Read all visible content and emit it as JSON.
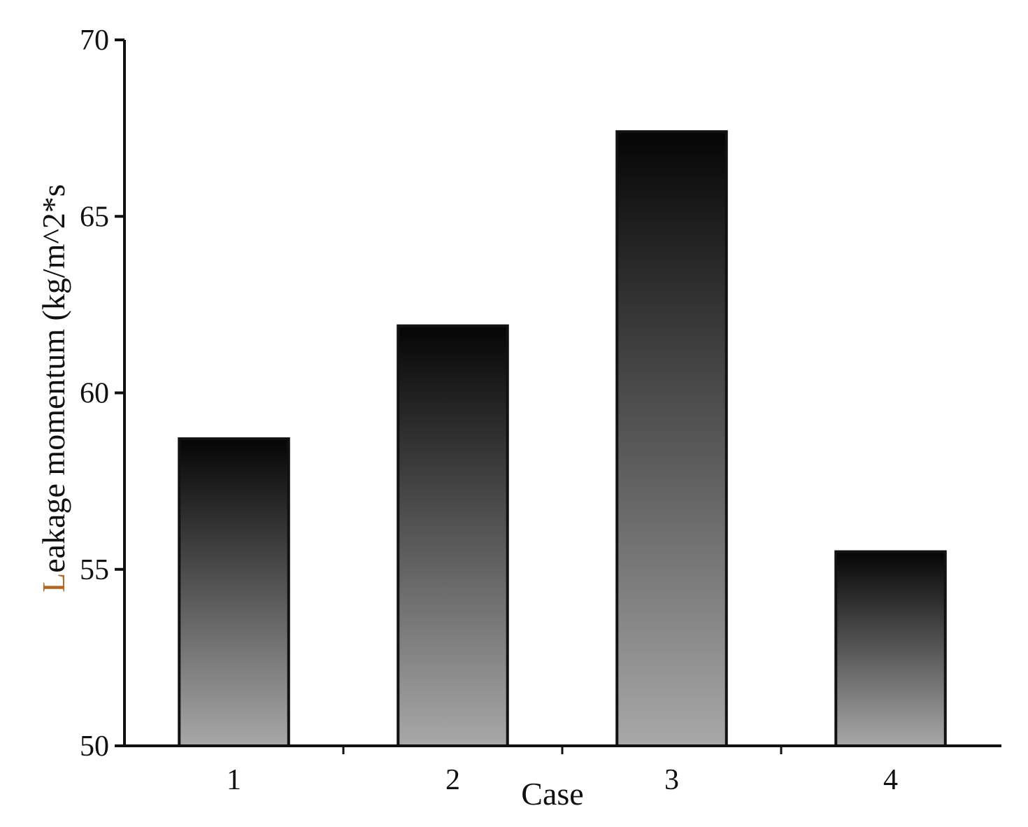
{
  "chart_data": {
    "type": "bar",
    "categories": [
      "1",
      "2",
      "3",
      "4"
    ],
    "values": [
      58.7,
      61.9,
      67.4,
      55.5
    ],
    "xlabel": "Case",
    "ylabel": "Leakage momentum (kg/m^2*s",
    "ylabel_first_letter": "L",
    "ylabel_rest": "eakage momentum (kg/m^2*s",
    "ylim": [
      50,
      70
    ],
    "yticks": [
      "50",
      "55",
      "60",
      "65",
      "70"
    ],
    "grid": false,
    "legend": "none",
    "bar_gradient": {
      "top": "#050505",
      "bottom": "#a8a8a8"
    },
    "colors": {
      "axis": "#111111",
      "ylabel_accent": "#b5651d"
    }
  }
}
